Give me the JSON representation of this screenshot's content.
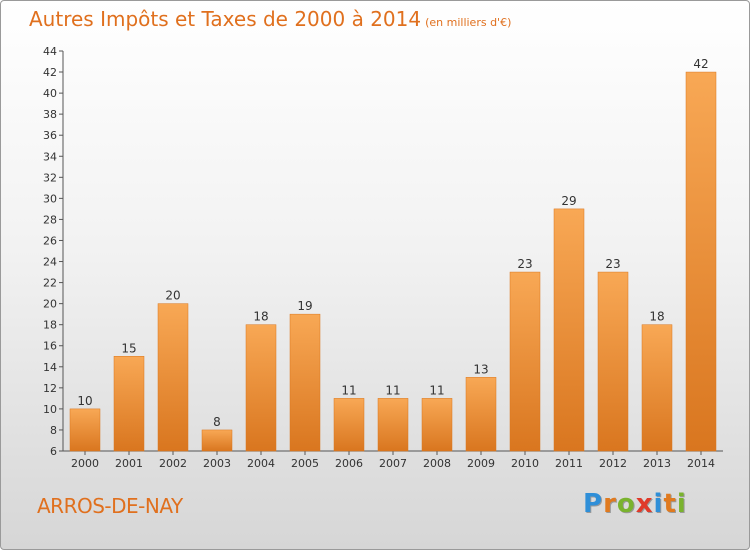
{
  "title": {
    "main": "Autres Impôts et Taxes de 2000 à 2014",
    "unit": "(en milliers d'€)"
  },
  "commune": "ARROS-DE-NAY",
  "logo": {
    "text": "Proxiti",
    "letters": [
      {
        "ch": "P",
        "color": "#2f8fd8"
      },
      {
        "ch": "r",
        "color": "#e07a1f"
      },
      {
        "ch": "o",
        "color": "#7ab32e"
      },
      {
        "ch": "x",
        "color": "#e03a2a"
      },
      {
        "ch": "i",
        "color": "#2f8fd8"
      },
      {
        "ch": "t",
        "color": "#e07a1f"
      },
      {
        "ch": "i",
        "color": "#7ab32e"
      }
    ]
  },
  "colors": {
    "bar_light": "#f8a855",
    "bar_dark": "#d9761f",
    "title": "#e0701e"
  },
  "chart_data": {
    "type": "bar",
    "title": "Autres Impôts et Taxes de 2000 à 2014",
    "subtitle": "(en milliers d'€)",
    "categories": [
      "2000",
      "2001",
      "2002",
      "2003",
      "2004",
      "2005",
      "2006",
      "2007",
      "2008",
      "2009",
      "2010",
      "2011",
      "2012",
      "2013",
      "2014"
    ],
    "values": [
      10,
      15,
      20,
      8,
      18,
      19,
      11,
      11,
      11,
      13,
      23,
      29,
      23,
      18,
      42
    ],
    "ylim": [
      6,
      44
    ],
    "yticks": [
      6,
      8,
      10,
      12,
      14,
      16,
      18,
      20,
      22,
      24,
      26,
      28,
      30,
      32,
      34,
      36,
      38,
      40,
      42,
      44
    ],
    "xlabel": "",
    "ylabel": "",
    "grid": false,
    "legend": "none"
  }
}
